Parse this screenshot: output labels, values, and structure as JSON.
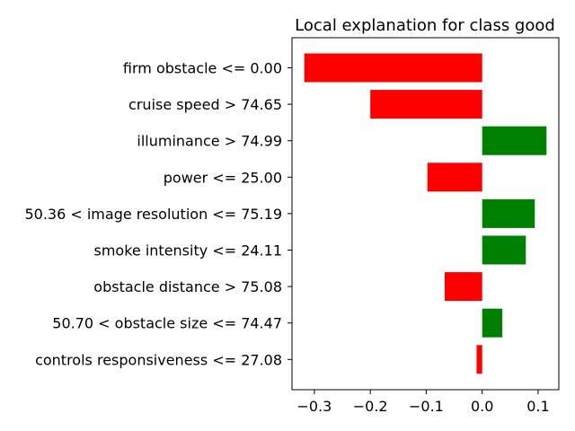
{
  "chart_data": {
    "type": "bar",
    "orientation": "horizontal",
    "title": "Local explanation for class good",
    "xlabel": "",
    "ylabel": "",
    "xlim": [
      -0.34,
      0.137
    ],
    "xticks": [
      -0.3,
      -0.2,
      -0.1,
      0.0,
      0.1
    ],
    "xtick_labels": [
      "−0.3",
      "−0.2",
      "−0.1",
      "0.0",
      "0.1"
    ],
    "grid": false,
    "legend": "none",
    "positive_color": "#008000",
    "negative_color": "#ff0000",
    "categories": [
      "firm obstacle <= 0.00",
      "cruise speed > 74.65",
      "illuminance > 74.99",
      "power <= 25.00",
      "50.36 < image resolution <= 75.19",
      "smoke intensity <= 24.11",
      "obstacle distance > 75.08",
      "50.70 < obstacle size <= 74.47",
      "controls responsiveness <= 27.08"
    ],
    "values": [
      -0.318,
      -0.2,
      0.115,
      -0.098,
      0.094,
      0.078,
      -0.067,
      0.036,
      -0.01
    ]
  }
}
